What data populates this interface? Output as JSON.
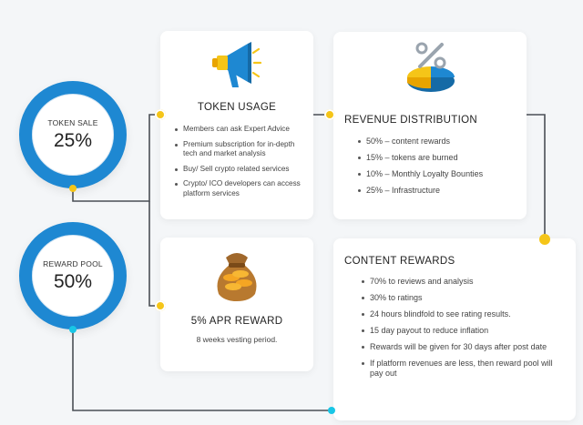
{
  "token_sale": {
    "label": "TOKEN SALE",
    "value": "25%"
  },
  "reward_pool": {
    "label": "REWARD POOL",
    "value": "50%"
  },
  "token_usage": {
    "title": "TOKEN USAGE",
    "items": [
      "Members can ask Expert Advice",
      "Premium subscription for in-depth tech and market analysis",
      "Buy/ Sell crypto related services",
      "Crypto/ ICO developers can access platform services"
    ],
    "icon": "megaphone-icon"
  },
  "revenue_distribution": {
    "title": "REVENUE DISTRIBUTION",
    "items": [
      "50% – content rewards",
      "15% – tokens are burned",
      "10% – Monthly Loyalty Bounties",
      "25% – Infrastructure"
    ],
    "icon": "percent-pie-chart-icon"
  },
  "apr_reward": {
    "title": "5% APR REWARD",
    "subtitle": "8 weeks vesting period.",
    "icon": "money-bag-icon"
  },
  "content_rewards": {
    "title": "CONTENT REWARDS",
    "items": [
      "70% to reviews and analysis",
      "30% to ratings",
      "24 hours blindfold to see rating results.",
      "15 day payout to reduce inflation",
      "Rewards will be given for 30 days after post date",
      "If platform revenues are less, then reward pool will pay out"
    ]
  },
  "colors": {
    "ring_blue": "#1e88d2",
    "connector": "#4a4f55",
    "dot_yellow": "#f5c518",
    "dot_cyan": "#18c6e6"
  }
}
